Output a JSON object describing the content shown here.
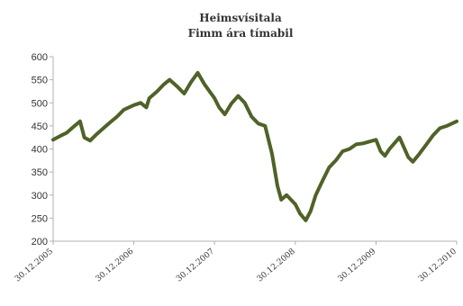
{
  "chart_data": {
    "type": "line",
    "title": "Heimsvísitala",
    "subtitle": "Fimm ára tímabil",
    "xlabel": "",
    "ylabel": "",
    "ylim": [
      200,
      600
    ],
    "yticks": [
      200,
      250,
      300,
      350,
      400,
      450,
      500,
      550,
      600
    ],
    "xlim": [
      "2005-12-30",
      "2010-12-30"
    ],
    "xtick_labels": [
      "30.12.2005",
      "30.12.2006",
      "30.12.2007",
      "30.12.2008",
      "30.12.2009",
      "30.12.2010"
    ],
    "xtick_dates": [
      "2005-12-30",
      "2006-12-30",
      "2007-12-30",
      "2008-12-30",
      "2009-12-30",
      "2010-12-30"
    ],
    "grid": false,
    "legend": "none",
    "line_color": "#4f6228",
    "series": [
      {
        "x": [
          "2005-12-30",
          "2006-01-30",
          "2006-03-01",
          "2006-04-01",
          "2006-05-01",
          "2006-05-20",
          "2006-06-15",
          "2006-07-15",
          "2006-08-15",
          "2006-09-15",
          "2006-10-15",
          "2006-11-15",
          "2006-12-30",
          "2007-01-30",
          "2007-02-25",
          "2007-03-10",
          "2007-04-15",
          "2007-05-15",
          "2007-06-10",
          "2007-07-15",
          "2007-08-15",
          "2007-09-15",
          "2007-10-15",
          "2007-11-15",
          "2007-12-30",
          "2008-01-20",
          "2008-02-15",
          "2008-03-15",
          "2008-04-15",
          "2008-05-15",
          "2008-06-15",
          "2008-07-15",
          "2008-08-15",
          "2008-09-15",
          "2008-10-10",
          "2008-10-27",
          "2008-11-20",
          "2008-12-30",
          "2009-01-20",
          "2009-02-15",
          "2009-03-09",
          "2009-04-01",
          "2009-05-01",
          "2009-06-01",
          "2009-07-01",
          "2009-08-01",
          "2009-09-01",
          "2009-10-01",
          "2009-11-01",
          "2009-12-30",
          "2010-01-20",
          "2010-02-08",
          "2010-03-01",
          "2010-04-15",
          "2010-05-25",
          "2010-06-15",
          "2010-07-15",
          "2010-08-15",
          "2010-09-15",
          "2010-10-15",
          "2010-11-15",
          "2010-12-30"
        ],
        "y": [
          420,
          428,
          435,
          448,
          460,
          425,
          418,
          432,
          445,
          458,
          470,
          485,
          495,
          500,
          490,
          510,
          525,
          540,
          550,
          535,
          520,
          545,
          565,
          540,
          510,
          490,
          475,
          498,
          515,
          500,
          470,
          455,
          450,
          390,
          320,
          290,
          300,
          280,
          260,
          245,
          265,
          300,
          330,
          360,
          375,
          395,
          400,
          410,
          412,
          420,
          395,
          385,
          400,
          425,
          382,
          372,
          390,
          410,
          430,
          445,
          450,
          460
        ]
      }
    ]
  }
}
